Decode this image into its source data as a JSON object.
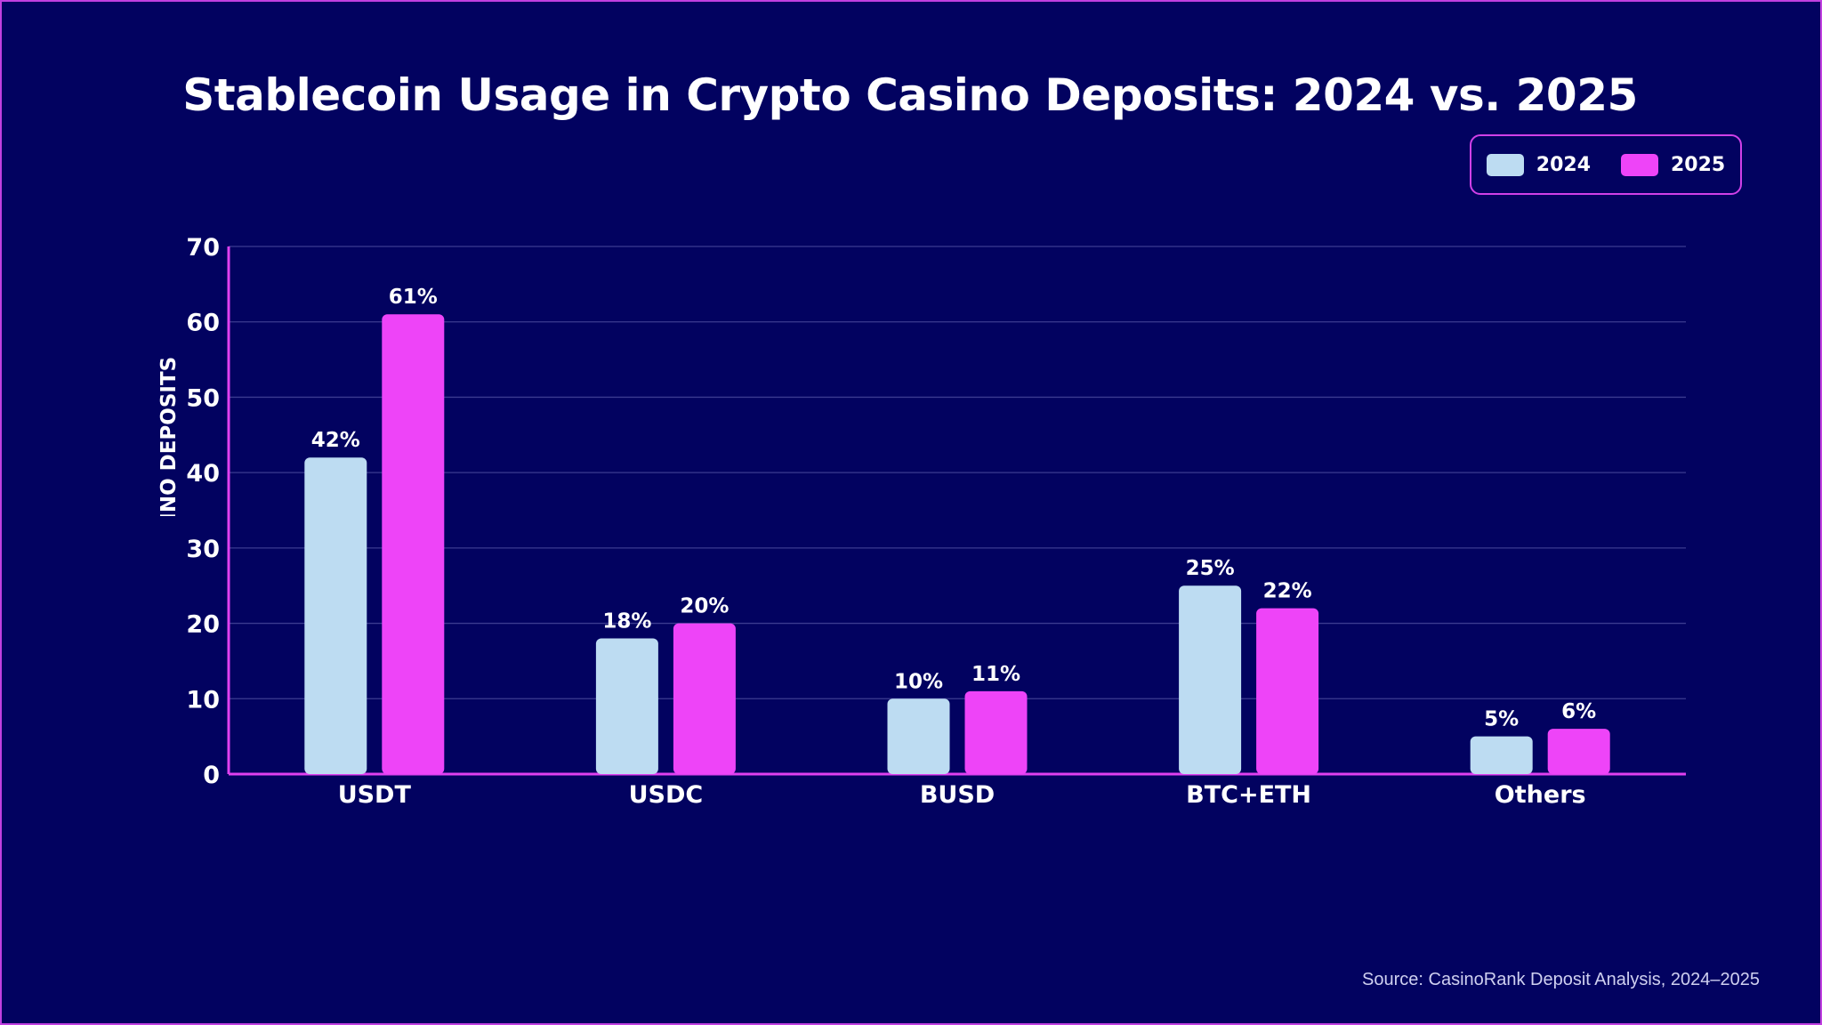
{
  "chart_data": {
    "type": "bar",
    "title": "Stablecoin Usage in Crypto Casino Deposits: 2024 vs. 2025",
    "xlabel": "",
    "ylabel": "% OF TOTAL CRYPTO CASINO DEPOSITS",
    "ylim": [
      0,
      70
    ],
    "yticks": [
      "0",
      "10",
      "20",
      "30",
      "40",
      "50",
      "60",
      "70"
    ],
    "categories": [
      "USDT",
      "USDC",
      "BUSD",
      "BTC+ETH",
      "Others"
    ],
    "series": [
      {
        "name": "2024",
        "color": "#bddcf2",
        "values": [
          42,
          18,
          10,
          25,
          5
        ],
        "labels": [
          "42%",
          "18%",
          "10%",
          "25%",
          "5%"
        ]
      },
      {
        "name": "2025",
        "color": "#ee44f8",
        "values": [
          61,
          20,
          11,
          22,
          6
        ],
        "labels": [
          "61%",
          "20%",
          "11%",
          "22%",
          "6%"
        ]
      }
    ],
    "grid": true,
    "legend_position": "top-right",
    "source": "Source: CasinoRank Deposit Analysis, 2024–2025"
  }
}
